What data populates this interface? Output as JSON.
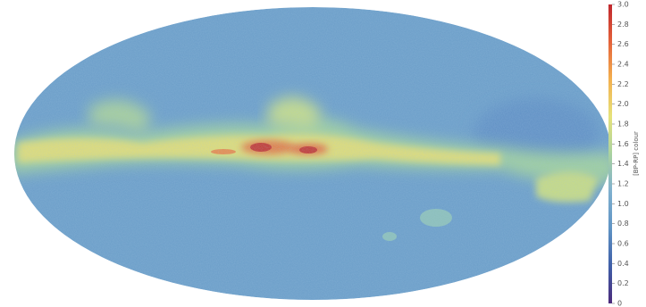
{
  "chart_data": {
    "type": "sky-map",
    "colorbar": {
      "label": "[BP-RP] colour",
      "lim": [
        0,
        3
      ],
      "ticks": [
        0,
        0.2,
        0.4,
        0.6,
        0.8,
        {
          "value": 1,
          "label": "1.0"
        },
        1.2,
        1.4,
        1.6,
        1.8,
        {
          "value": 2,
          "label": "2.0"
        },
        2.2,
        2.4,
        2.6,
        2.8,
        {
          "value": 3,
          "label": "3.0"
        }
      ],
      "colors": [
        "#4b2a7b",
        "#3f5fa8",
        "#5f93c4",
        "#7fb0cf",
        "#a9d2a0",
        "#e6e27a",
        "#f3b04e",
        "#e4623a",
        "#c0272d"
      ]
    }
  }
}
